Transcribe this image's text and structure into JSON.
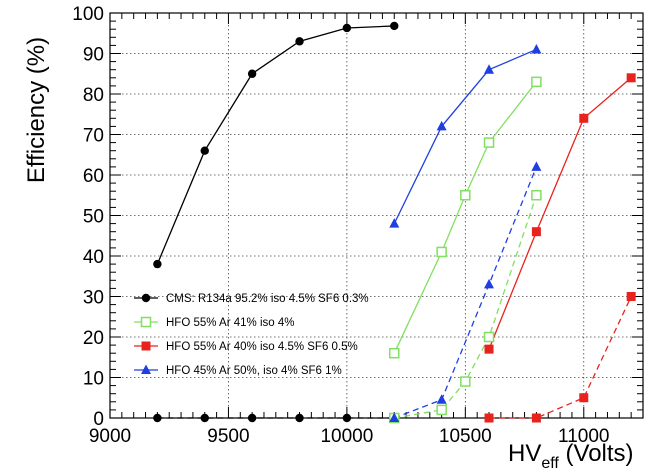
{
  "chart_data": {
    "type": "line",
    "ylabel": "Efficiency (%)",
    "xlabel_main": "HV",
    "xlabel_sub": "eff",
    "xlabel_unit": " (Volts)",
    "xlim": [
      9000,
      11250
    ],
    "ylim": [
      0,
      100
    ],
    "x_ticks": [
      9000,
      9500,
      10000,
      10500,
      11000
    ],
    "y_ticks": [
      0,
      10,
      20,
      30,
      40,
      50,
      60,
      70,
      80,
      90,
      100
    ],
    "grid": true,
    "legend_position": "bottom-left",
    "series": [
      {
        "name": "CMS: R134a 95.2% iso 4.5% SF6 0.3%",
        "color": "#000000",
        "marker": "circle-filled",
        "legend_marker": "circle-filled",
        "line_style": "solid",
        "points": [
          [
            9200,
            38
          ],
          [
            9400,
            66
          ],
          [
            9600,
            85
          ],
          [
            9800,
            93
          ],
          [
            10000,
            96.3
          ],
          [
            10200,
            96.8
          ]
        ]
      },
      {
        "name": "",
        "color": "#000000",
        "marker": "circle-filled",
        "line_style": "dashed",
        "points": [
          [
            9200,
            0
          ],
          [
            9400,
            0
          ],
          [
            9600,
            0
          ],
          [
            9800,
            0
          ],
          [
            10000,
            0
          ],
          [
            10200,
            0
          ]
        ]
      },
      {
        "name": "HFO 55% Ar 41% iso 4%",
        "color": "#80e060",
        "marker": "square-open",
        "legend_marker": "square-open",
        "line_style": "solid",
        "points": [
          [
            10200,
            16
          ],
          [
            10400,
            41
          ],
          [
            10500,
            55
          ],
          [
            10600,
            68
          ],
          [
            10800,
            83
          ]
        ]
      },
      {
        "name": "",
        "color": "#80e060",
        "marker": "square-open",
        "line_style": "dashed",
        "points": [
          [
            10200,
            0
          ],
          [
            10400,
            2
          ],
          [
            10500,
            9
          ],
          [
            10600,
            20
          ],
          [
            10800,
            55
          ]
        ]
      },
      {
        "name": "HFO 55% Ar 40% iso 4.5% SF6 0.5%",
        "color": "#e8231d",
        "marker": "square-filled",
        "legend_marker": "square-filled",
        "line_style": "solid",
        "points": [
          [
            10600,
            17
          ],
          [
            10800,
            46
          ],
          [
            11000,
            74
          ],
          [
            11200,
            84
          ]
        ]
      },
      {
        "name": "",
        "color": "#e8231d",
        "marker": "square-filled",
        "line_style": "dashed",
        "points": [
          [
            10600,
            0
          ],
          [
            10800,
            0
          ],
          [
            11000,
            5
          ],
          [
            11200,
            30
          ]
        ]
      },
      {
        "name": "HFO 45% Ar 50%, iso 4%  SF6 1%",
        "color": "#1f3fe0",
        "marker": "triangle-filled",
        "legend_marker": "triangle-filled",
        "line_style": "solid",
        "points": [
          [
            10200,
            48
          ],
          [
            10400,
            72
          ],
          [
            10600,
            86
          ],
          [
            10800,
            91
          ]
        ]
      },
      {
        "name": "",
        "color": "#1f3fe0",
        "marker": "triangle-filled",
        "line_style": "dashed",
        "points": [
          [
            10200,
            0
          ],
          [
            10400,
            4.5
          ],
          [
            10600,
            33
          ],
          [
            10800,
            62
          ]
        ]
      }
    ]
  }
}
